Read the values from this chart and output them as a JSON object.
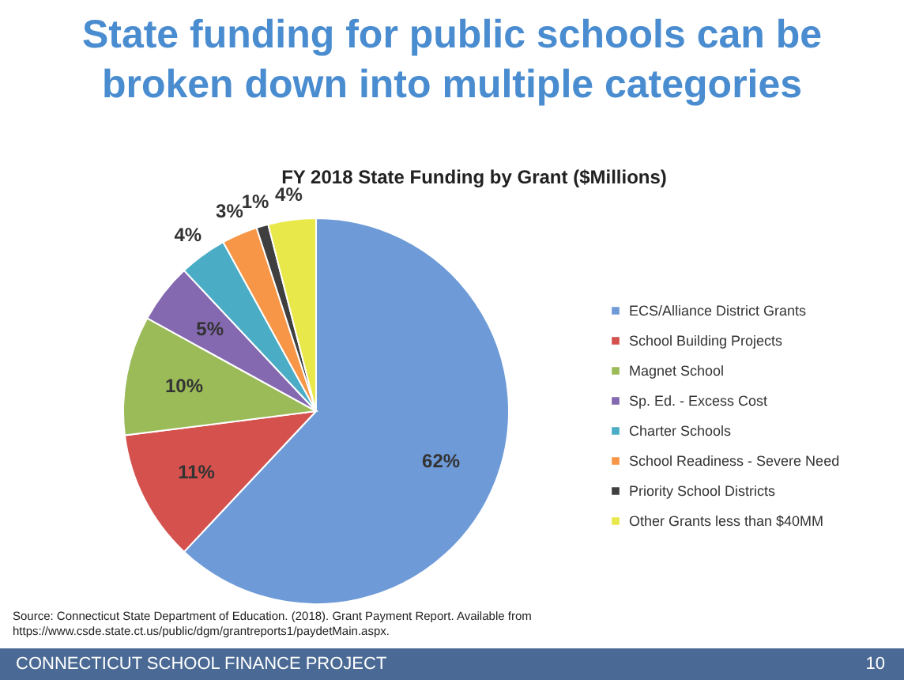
{
  "chart_data": {
    "type": "pie",
    "title": "State funding for public schools can be broken down into multiple categories",
    "subtitle": "FY 2018 State Funding by Grant ($Millions)",
    "categories": [
      "ECS/Alliance District Grants",
      "School Building Projects",
      "Magnet School",
      "Sp. Ed. - Excess Cost",
      "Charter Schools",
      "School Readiness - Severe Need",
      "Priority School Districts",
      "Other Grants less than $40MM"
    ],
    "values": [
      62,
      11,
      10,
      5,
      4,
      3,
      1,
      4
    ],
    "colors": [
      "#6e9bd8",
      "#d4514e",
      "#9bbb59",
      "#8468b0",
      "#4bacc6",
      "#f79646",
      "#3f3f3f",
      "#e8e84a"
    ],
    "value_labels": [
      "62%",
      "11%",
      "10%",
      "5%",
      "4%",
      "3%",
      "1%",
      "4%"
    ],
    "legend": "right",
    "annotations": [
      "Source: Connecticut State Department of Education. (2018). Grant Payment Report. Available from https://www.csde.state.ct.us/public/dgm/grantreports1/paydetMain.aspx.",
      "CONNECTICUT SCHOOL FINANCE PROJECT",
      "10"
    ]
  }
}
